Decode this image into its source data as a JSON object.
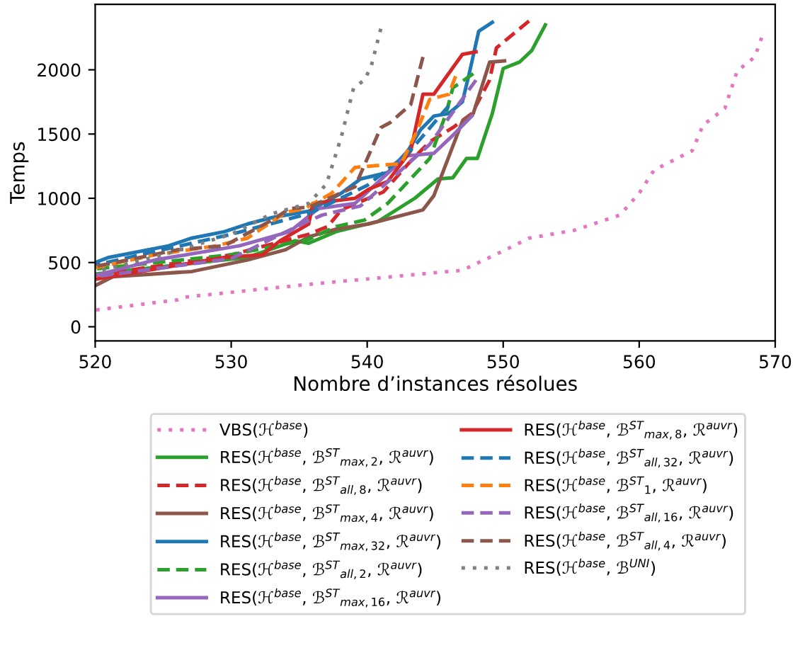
{
  "chart_data": {
    "type": "line",
    "xlabel": "Nombre d’instances résolues",
    "ylabel": "Temps",
    "xlim": [
      520,
      570
    ],
    "ylim": [
      -110,
      2510
    ],
    "xticks": [
      520,
      530,
      540,
      550,
      560,
      570
    ],
    "yticks": [
      0,
      500,
      1000,
      1500,
      2000
    ],
    "grid": false,
    "legend": "bottom",
    "series": [
      {
        "name": "VBS(ℋ$^{base}$)",
        "color": "#e377c2",
        "line_style": "dotted",
        "x": [
          520,
          526.1,
          526.5,
          535.7,
          547,
          550,
          551.9,
          555.2,
          558.6,
          560,
          561.1,
          563.9,
          564.7,
          566.3,
          567.2,
          568.5,
          569
        ],
        "values": [
          130,
          210,
          230,
          330,
          440,
          590,
          690,
          750,
          870,
          1040,
          1220,
          1370,
          1570,
          1700,
          1990,
          2100,
          2250
        ]
      },
      {
        "name": "RES(ℋ$^{base}$, ℬ$^{ST}$$_{max,2}$, ℛ$^{auvr}$)",
        "color": "#2ca02c",
        "line_style": "solid",
        "x": [
          520,
          526.8,
          531.2,
          534.7,
          535.7,
          537.7,
          540.8,
          543.5,
          545.2,
          546.3,
          547.3,
          548.1,
          549.2,
          550,
          551.2,
          552.1,
          553.1
        ],
        "values": [
          410,
          490,
          540,
          670,
          650,
          740,
          820,
          1000,
          1150,
          1160,
          1310,
          1310,
          1660,
          2010,
          2060,
          2150,
          2350
        ]
      },
      {
        "name": "RES(ℋ$^{base}$, ℬ$^{ST}$$_{all,8}$, ℛ$^{auvr}$)",
        "color": "#d62728",
        "line_style": "dashed",
        "x": [
          520,
          530,
          535.7,
          537.1,
          538.1,
          541.2,
          543.2,
          544.6,
          546.3,
          547.7,
          549,
          549.5,
          551.9
        ],
        "values": [
          400,
          560,
          720,
          780,
          910,
          1050,
          1290,
          1440,
          1550,
          1660,
          1920,
          2170,
          2380
        ]
      },
      {
        "name": "RES(ℋ$^{base}$, ℬ$^{ST}$$_{max,4}$, ℛ$^{auvr}$)",
        "color": "#8c564b",
        "line_style": "solid",
        "x": [
          520,
          521.3,
          527.1,
          531.2,
          534,
          535.7,
          537.7,
          540.1,
          544.1,
          544.9,
          547,
          547.8,
          549,
          550.1
        ],
        "values": [
          320,
          390,
          430,
          520,
          600,
          700,
          760,
          800,
          910,
          1020,
          1600,
          1660,
          2060,
          2070
        ]
      },
      {
        "name": "RES(ℋ$^{base}$, ℬ$^{ST}$$_{max,32}$, ℛ$^{auvr}$)",
        "color": "#1f77b4",
        "line_style": "solid",
        "x": [
          520,
          521,
          525.4,
          527.1,
          529.5,
          531.2,
          533,
          535.7,
          538.1,
          539.5,
          541.5,
          543,
          543.9,
          544.9,
          546,
          547,
          547.5,
          548.2,
          549.2
        ],
        "values": [
          500,
          540,
          630,
          690,
          740,
          800,
          850,
          900,
          1040,
          1150,
          1200,
          1370,
          1530,
          1640,
          1660,
          1750,
          1970,
          2300,
          2370
        ]
      },
      {
        "name": "RES(ℋ$^{base}$, ℬ$^{ST}$$_{all,2}$, ℛ$^{auvr}$)",
        "color": "#2ca02c",
        "line_style": "dashed",
        "x": [
          520,
          530,
          535.7,
          537.7,
          539.8,
          541.5,
          544.6,
          545.8,
          546.3,
          547.8
        ],
        "values": [
          450,
          560,
          680,
          780,
          830,
          960,
          1310,
          1660,
          1860,
          1970
        ]
      },
      {
        "name": "RES(ℋ$^{base}$, ℬ$^{ST}$$_{max,16}$, ℛ$^{auvr}$)",
        "color": "#9467bd",
        "line_style": "solid",
        "x": [
          520,
          524.4,
          530.6,
          534.3,
          536.4,
          539.1,
          542.9,
          544.9,
          546.3,
          547.7
        ],
        "values": [
          400,
          520,
          630,
          740,
          920,
          960,
          1330,
          1350,
          1490,
          1640
        ]
      },
      {
        "name": "RES(ℋ$^{base}$, ℬ$^{ST}$$_{max,8}$, ℛ$^{auvr}$)",
        "color": "#d62728",
        "line_style": "solid",
        "x": [
          520,
          529.5,
          532.3,
          533.6,
          535.7,
          536,
          539.1,
          540.1,
          541.5,
          543.2,
          544.1,
          544.9,
          547,
          548
        ],
        "values": [
          370,
          540,
          560,
          670,
          800,
          960,
          1000,
          1070,
          1130,
          1370,
          1810,
          1810,
          2120,
          2140
        ]
      },
      {
        "name": "RES(ℋ$^{base}$, ℬ$^{ST}$$_{all,32}$, ℛ$^{auvr}$)",
        "color": "#1f77b4",
        "line_style": "dashed",
        "x": [
          520,
          530,
          535.7,
          540,
          543,
          546
        ],
        "values": [
          480,
          720,
          880,
          1100,
          1350,
          1720
        ]
      },
      {
        "name": "RES(ℋ$^{base}$, ℬ$^{ST}$$_{1}$, ℛ$^{auvr}$)",
        "color": "#ff7f0e",
        "line_style": "dashed",
        "x": [
          520,
          524.4,
          528.9,
          531.2,
          534,
          535.4,
          537.4,
          539.1,
          542.5,
          543.6,
          544.6,
          546,
          546.5
        ],
        "values": [
          460,
          560,
          630,
          690,
          890,
          920,
          1040,
          1240,
          1270,
          1510,
          1770,
          1810,
          1950
        ]
      },
      {
        "name": "RES(ℋ$^{base}$, ℬ$^{ST}$$_{all,16}$, ℛ$^{auvr}$)",
        "color": "#9467bd",
        "line_style": "dashed",
        "x": [
          520,
          530,
          535.4,
          536.7,
          539.5,
          542.5,
          544.6,
          548
        ],
        "values": [
          390,
          530,
          810,
          870,
          940,
          1220,
          1420,
          1920
        ]
      },
      {
        "name": "RES(ℋ$^{base}$, ℬ$^{ST}$$_{all,4}$, ℛ$^{auvr}$)",
        "color": "#8c564b",
        "line_style": "dashed",
        "x": [
          520,
          521,
          526.1,
          529.5,
          533,
          534.3,
          535.7,
          539.1,
          539.8,
          541,
          541.7,
          543.2,
          544.1
        ],
        "values": [
          470,
          490,
          600,
          630,
          830,
          920,
          930,
          1090,
          1260,
          1550,
          1590,
          1730,
          2100
        ]
      },
      {
        "name": "RES(ℋ$^{base}$, ℬ$^{UNI}$)",
        "color": "#7f7f7f",
        "line_style": "dotted",
        "x": [
          520,
          525,
          530,
          533,
          535.7,
          537,
          538.1,
          539,
          539.8,
          540.3,
          541
        ],
        "values": [
          430,
          560,
          720,
          880,
          960,
          1110,
          1480,
          1860,
          1920,
          2030,
          2320
        ]
      }
    ]
  }
}
